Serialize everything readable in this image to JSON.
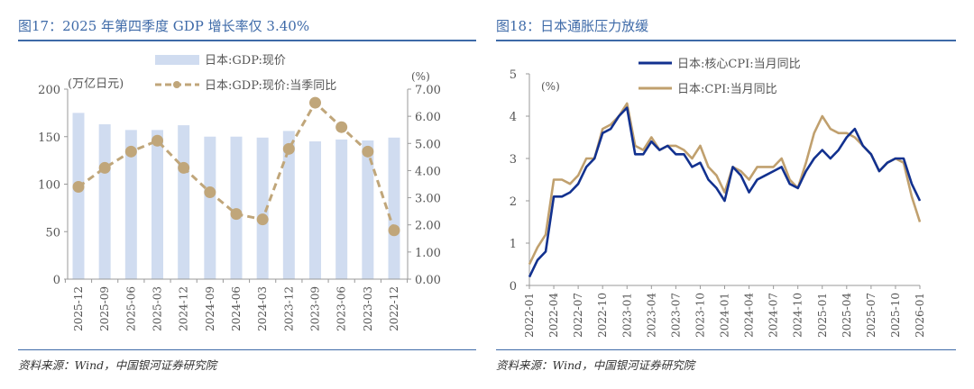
{
  "left": {
    "title": "图17：2025 年第四季度 GDP 增长率仅 3.40%",
    "source": "资料来源：Wind，中国银河证券研究院"
  },
  "right": {
    "title": "图18：日本通胀压力放缓",
    "source": "资料来源：Wind，中国银河证券研究院"
  },
  "colors": {
    "title": "#3e6aa8",
    "bar": "#d0dcf0",
    "gdp_line": "#c0a67a",
    "core_cpi": "#12318f",
    "cpi": "#c0a06e"
  },
  "chart_data": [
    {
      "type": "bar",
      "title": "图17：2025 年第四季度 GDP 增长率仅 3.40%",
      "categories": [
        "2025-12",
        "2025-09",
        "2025-06",
        "2025-03",
        "2024-12",
        "2024-09",
        "2024-06",
        "2024-03",
        "2023-12",
        "2023-09",
        "2023-06",
        "2023-03",
        "2022-12"
      ],
      "ylabel": "(万亿日元)",
      "y2label": "(%)",
      "ylim": [
        0,
        200
      ],
      "y2lim": [
        0,
        7
      ],
      "yticks": [
        "0",
        "50",
        "100",
        "150",
        "200"
      ],
      "y2ticks": [
        "0.00",
        "1.00",
        "2.00",
        "3.00",
        "4.00",
        "5.00",
        "6.00",
        "7.00"
      ],
      "legend": "top-center",
      "series": [
        {
          "name": "日本:GDP:现价",
          "type": "bar",
          "axis": "left",
          "values": [
            175,
            163,
            157,
            157,
            162,
            150,
            150,
            149,
            156,
            145,
            147,
            146,
            149
          ]
        },
        {
          "name": "日本:GDP:现价:当季同比",
          "type": "line",
          "axis": "right",
          "values": [
            3.4,
            4.1,
            4.7,
            5.1,
            4.1,
            3.2,
            2.4,
            2.2,
            4.8,
            6.5,
            5.6,
            4.7,
            1.8
          ]
        }
      ]
    },
    {
      "type": "line",
      "title": "图18：日本通胀压力放缓",
      "ylabel": "(%)",
      "ylim": [
        0,
        5
      ],
      "yticks": [
        "0",
        "1",
        "2",
        "3",
        "4",
        "5"
      ],
      "x_start": "2022-01",
      "xticks": [
        "2022-01",
        "2022-04",
        "2022-07",
        "2022-10",
        "2023-01",
        "2023-04",
        "2023-07",
        "2023-10",
        "2024-01",
        "2024-04",
        "2024-07",
        "2024-10",
        "2025-01",
        "2025-04",
        "2025-07",
        "2025-10",
        "2026-01"
      ],
      "legend": "top-center",
      "series": [
        {
          "name": "日本:核心CPI:当月同比",
          "values": [
            0.2,
            0.6,
            0.8,
            2.1,
            2.1,
            2.2,
            2.4,
            2.8,
            3.0,
            3.6,
            3.7,
            4.0,
            4.2,
            3.1,
            3.1,
            3.4,
            3.2,
            3.3,
            3.1,
            3.1,
            2.8,
            2.9,
            2.5,
            2.3,
            2.0,
            2.8,
            2.6,
            2.2,
            2.5,
            2.6,
            2.7,
            2.8,
            2.4,
            2.3,
            2.7,
            3.0,
            3.2,
            3.0,
            3.2,
            3.5,
            3.7,
            3.3,
            3.1,
            2.7,
            2.9,
            3.0,
            3.0,
            2.4,
            2.0
          ]
        },
        {
          "name": "日本:CPI:当月同比",
          "values": [
            0.5,
            0.9,
            1.2,
            2.5,
            2.5,
            2.4,
            2.6,
            3.0,
            3.0,
            3.7,
            3.8,
            4.0,
            4.3,
            3.3,
            3.2,
            3.5,
            3.2,
            3.3,
            3.3,
            3.2,
            3.0,
            3.3,
            2.8,
            2.6,
            2.2,
            2.8,
            2.7,
            2.5,
            2.8,
            2.8,
            2.8,
            3.0,
            2.5,
            2.3,
            2.9,
            3.6,
            4.0,
            3.7,
            3.6,
            3.6,
            3.5,
            3.3,
            3.1,
            2.7,
            2.9,
            3.0,
            2.9,
            2.1,
            1.5
          ]
        }
      ]
    }
  ]
}
